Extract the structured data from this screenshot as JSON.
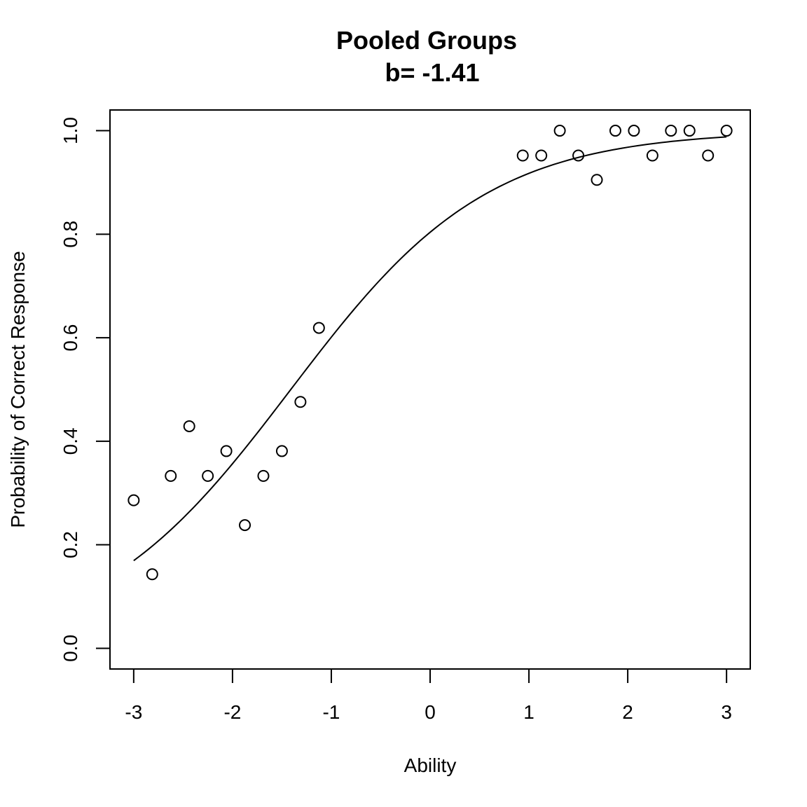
{
  "chart_data": {
    "type": "scatter",
    "title": "Pooled Groups",
    "subtitle": "b= -1.41",
    "xlabel": "Ability",
    "ylabel": "Probability of Correct Response",
    "xlim": [
      -3.24,
      3.24
    ],
    "ylim": [
      -0.04,
      1.04
    ],
    "xticks": [
      -3,
      -2,
      -1,
      0,
      1,
      2,
      3
    ],
    "xtick_labels": [
      "-3",
      "-2",
      "-1",
      "0",
      "1",
      "2",
      "3"
    ],
    "yticks": [
      0,
      0.2,
      0.4,
      0.6,
      0.8,
      1
    ],
    "ytick_labels": [
      "0.0",
      "0.2",
      "0.4",
      "0.6",
      "0.8",
      "1.0"
    ],
    "grid": false,
    "legend": "none",
    "points": {
      "x": [
        -3.0,
        -2.8125,
        -2.625,
        -2.4375,
        -2.25,
        -2.0625,
        -1.875,
        -1.6875,
        -1.5,
        -1.3125,
        -1.125,
        0.9375,
        1.125,
        1.3125,
        1.5,
        1.6875,
        1.875,
        2.0625,
        2.25,
        2.4375,
        2.625,
        2.8125,
        3.0
      ],
      "y": [
        0.286,
        0.143,
        0.333,
        0.429,
        0.333,
        0.381,
        0.238,
        0.333,
        0.381,
        0.476,
        0.619,
        0.952,
        0.952,
        1.0,
        0.952,
        0.905,
        1.0,
        1.0,
        0.952,
        1.0,
        1.0,
        0.952,
        1.0
      ]
    },
    "curve": {
      "type": "logistic",
      "a": 1.0,
      "b": -1.41,
      "x_range": [
        -3,
        3
      ]
    }
  }
}
